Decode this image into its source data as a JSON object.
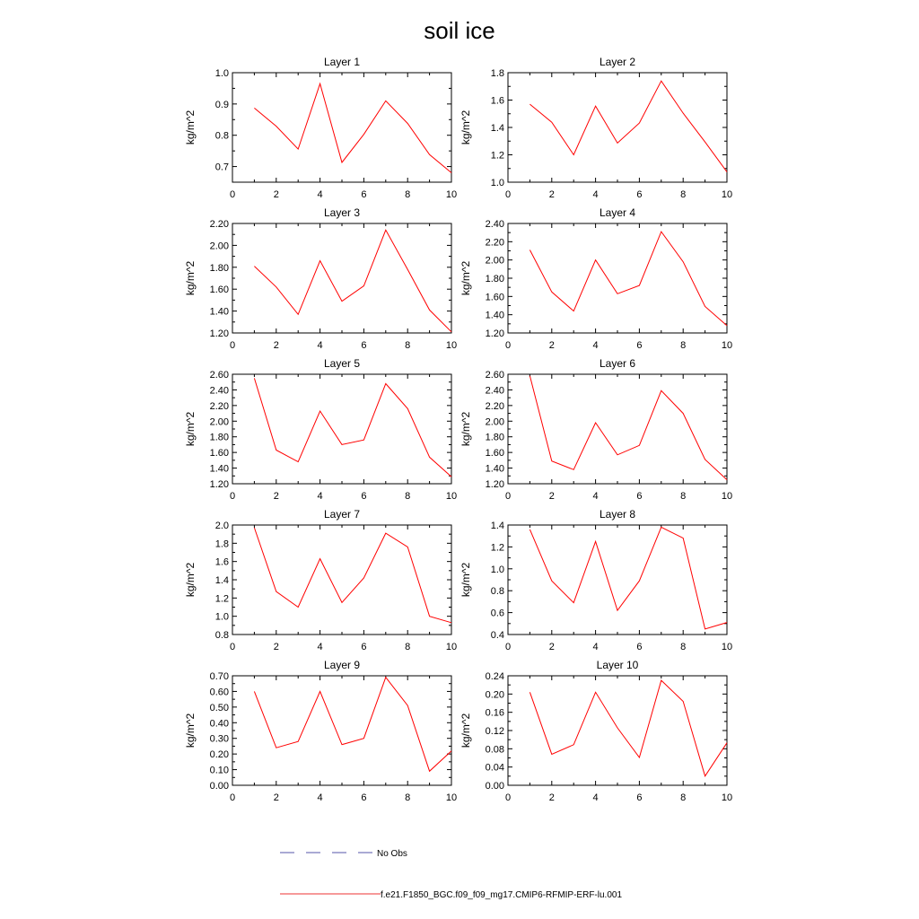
{
  "figure": {
    "title": "soil ice"
  },
  "chart_data": [
    {
      "type": "line",
      "title": "Layer 1",
      "ylabel": "kg/m^2",
      "xlim": [
        0,
        10
      ],
      "ylim": [
        0.65,
        1.0
      ],
      "xticks": [
        "0",
        "2",
        "4",
        "6",
        "8",
        "10"
      ],
      "yticks": [
        0.7,
        0.8,
        0.9,
        1.0
      ],
      "ytick_labels": [
        "0.7",
        "0.8",
        "0.9",
        "1.0"
      ],
      "x": [
        1,
        2,
        3,
        4,
        5,
        6,
        7,
        8,
        9,
        10
      ],
      "series": [
        {
          "name": "f.e21.F1850_BGC.f09_f09_mg17.CMIP6-RFMIP-ERF-lu.001",
          "values": [
            0.887,
            0.829,
            0.756,
            0.965,
            0.713,
            0.803,
            0.91,
            0.838,
            0.738,
            0.68
          ]
        }
      ]
    },
    {
      "type": "line",
      "title": "Layer 2",
      "ylabel": "kg/m^2",
      "xlim": [
        0,
        10
      ],
      "ylim": [
        1.0,
        1.8
      ],
      "xticks": [
        "0",
        "2",
        "4",
        "6",
        "8",
        "10"
      ],
      "yticks": [
        1.0,
        1.2,
        1.4,
        1.6,
        1.8
      ],
      "ytick_labels": [
        "1.0",
        "1.2",
        "1.4",
        "1.6",
        "1.8"
      ],
      "x": [
        1,
        2,
        3,
        4,
        5,
        6,
        7,
        8,
        9,
        10
      ],
      "series": [
        {
          "name": "f.e21.F1850_BGC.f09_f09_mg17.CMIP6-RFMIP-ERF-lu.001",
          "values": [
            1.57,
            1.438,
            1.2,
            1.556,
            1.286,
            1.432,
            1.74,
            1.504,
            1.294,
            1.075
          ]
        }
      ]
    },
    {
      "type": "line",
      "title": "Layer 3",
      "ylabel": "kg/m^2",
      "xlim": [
        0,
        10
      ],
      "ylim": [
        1.2,
        2.2
      ],
      "xticks": [
        "0",
        "2",
        "4",
        "6",
        "8",
        "10"
      ],
      "yticks": [
        1.2,
        1.4,
        1.6,
        1.8,
        2.0,
        2.2
      ],
      "ytick_labels": [
        "1.20",
        "1.40",
        "1.60",
        "1.80",
        "2.00",
        "2.20"
      ],
      "x": [
        1,
        2,
        3,
        4,
        5,
        6,
        7,
        8,
        9,
        10
      ],
      "series": [
        {
          "name": "f.e21.F1850_BGC.f09_f09_mg17.CMIP6-RFMIP-ERF-lu.001",
          "values": [
            1.81,
            1.62,
            1.37,
            1.86,
            1.49,
            1.63,
            2.14,
            1.78,
            1.41,
            1.21
          ]
        }
      ]
    },
    {
      "type": "line",
      "title": "Layer 4",
      "ylabel": "kg/m^2",
      "xlim": [
        0,
        10
      ],
      "ylim": [
        1.2,
        2.4
      ],
      "xticks": [
        "0",
        "2",
        "4",
        "6",
        "8",
        "10"
      ],
      "yticks": [
        1.2,
        1.4,
        1.6,
        1.8,
        2.0,
        2.2,
        2.4
      ],
      "ytick_labels": [
        "1.20",
        "1.40",
        "1.60",
        "1.80",
        "2.00",
        "2.20",
        "2.40"
      ],
      "x": [
        1,
        2,
        3,
        4,
        5,
        6,
        7,
        8,
        9,
        10
      ],
      "series": [
        {
          "name": "f.e21.F1850_BGC.f09_f09_mg17.CMIP6-RFMIP-ERF-lu.001",
          "values": [
            2.11,
            1.65,
            1.44,
            2.0,
            1.63,
            1.72,
            2.31,
            1.98,
            1.49,
            1.28
          ]
        }
      ]
    },
    {
      "type": "line",
      "title": "Layer 5",
      "ylabel": "kg/m^2",
      "xlim": [
        0,
        10
      ],
      "ylim": [
        1.2,
        2.6
      ],
      "xticks": [
        "0",
        "2",
        "4",
        "6",
        "8",
        "10"
      ],
      "yticks": [
        1.2,
        1.4,
        1.6,
        1.8,
        2.0,
        2.2,
        2.4,
        2.6
      ],
      "ytick_labels": [
        "1.20",
        "1.40",
        "1.60",
        "1.80",
        "2.00",
        "2.20",
        "2.40",
        "2.60"
      ],
      "x": [
        1,
        2,
        3,
        4,
        5,
        6,
        7,
        8,
        9,
        10
      ],
      "series": [
        {
          "name": "f.e21.F1850_BGC.f09_f09_mg17.CMIP6-RFMIP-ERF-lu.001",
          "values": [
            2.55,
            1.63,
            1.48,
            2.13,
            1.7,
            1.76,
            2.48,
            2.16,
            1.54,
            1.29
          ]
        }
      ]
    },
    {
      "type": "line",
      "title": "Layer 6",
      "ylabel": "kg/m^2",
      "xlim": [
        0,
        10
      ],
      "ylim": [
        1.2,
        2.6
      ],
      "xticks": [
        "0",
        "2",
        "4",
        "6",
        "8",
        "10"
      ],
      "yticks": [
        1.2,
        1.4,
        1.6,
        1.8,
        2.0,
        2.2,
        2.4,
        2.6
      ],
      "ytick_labels": [
        "1.20",
        "1.40",
        "1.60",
        "1.80",
        "2.00",
        "2.20",
        "2.40",
        "2.60"
      ],
      "x": [
        1,
        2,
        3,
        4,
        5,
        6,
        7,
        8,
        9,
        10
      ],
      "series": [
        {
          "name": "f.e21.F1850_BGC.f09_f09_mg17.CMIP6-RFMIP-ERF-lu.001",
          "values": [
            2.58,
            1.49,
            1.38,
            1.98,
            1.57,
            1.69,
            2.39,
            2.1,
            1.51,
            1.25
          ]
        }
      ]
    },
    {
      "type": "line",
      "title": "Layer 7",
      "ylabel": "kg/m^2",
      "xlim": [
        0,
        10
      ],
      "ylim": [
        0.8,
        2.0
      ],
      "xticks": [
        "0",
        "2",
        "4",
        "6",
        "8",
        "10"
      ],
      "yticks": [
        0.8,
        1.0,
        1.2,
        1.4,
        1.6,
        1.8,
        2.0
      ],
      "ytick_labels": [
        "0.8",
        "1.0",
        "1.2",
        "1.4",
        "1.6",
        "1.8",
        "2.0"
      ],
      "x": [
        1,
        2,
        3,
        4,
        5,
        6,
        7,
        8,
        9,
        10
      ],
      "series": [
        {
          "name": "f.e21.F1850_BGC.f09_f09_mg17.CMIP6-RFMIP-ERF-lu.001",
          "values": [
            1.97,
            1.27,
            1.1,
            1.63,
            1.15,
            1.42,
            1.91,
            1.76,
            1.0,
            0.93
          ]
        }
      ]
    },
    {
      "type": "line",
      "title": "Layer 8",
      "ylabel": "kg/m^2",
      "xlim": [
        0,
        10
      ],
      "ylim": [
        0.4,
        1.4
      ],
      "xticks": [
        "0",
        "2",
        "4",
        "6",
        "8",
        "10"
      ],
      "yticks": [
        0.4,
        0.6,
        0.8,
        1.0,
        1.2,
        1.4
      ],
      "ytick_labels": [
        "0.4",
        "0.6",
        "0.8",
        "1.0",
        "1.2",
        "1.4"
      ],
      "x": [
        1,
        2,
        3,
        4,
        5,
        6,
        7,
        8,
        9,
        10
      ],
      "series": [
        {
          "name": "f.e21.F1850_BGC.f09_f09_mg17.CMIP6-RFMIP-ERF-lu.001",
          "values": [
            1.36,
            0.89,
            0.69,
            1.25,
            0.62,
            0.89,
            1.38,
            1.28,
            0.45,
            0.51
          ]
        }
      ]
    },
    {
      "type": "line",
      "title": "Layer 9",
      "ylabel": "kg/m^2",
      "xlim": [
        0,
        10
      ],
      "ylim": [
        0.0,
        0.7
      ],
      "xticks": [
        "0",
        "2",
        "4",
        "6",
        "8",
        "10"
      ],
      "yticks": [
        0.0,
        0.1,
        0.2,
        0.3,
        0.4,
        0.5,
        0.6,
        0.7
      ],
      "ytick_labels": [
        "0.00",
        "0.10",
        "0.20",
        "0.30",
        "0.40",
        "0.50",
        "0.60",
        "0.70"
      ],
      "x": [
        1,
        2,
        3,
        4,
        5,
        6,
        7,
        8,
        9,
        10
      ],
      "series": [
        {
          "name": "f.e21.F1850_BGC.f09_f09_mg17.CMIP6-RFMIP-ERF-lu.001",
          "values": [
            0.6,
            0.24,
            0.28,
            0.6,
            0.26,
            0.3,
            0.69,
            0.51,
            0.09,
            0.22
          ]
        }
      ]
    },
    {
      "type": "line",
      "title": "Layer 10",
      "ylabel": "kg/m^2",
      "xlim": [
        0,
        10
      ],
      "ylim": [
        0.0,
        0.24
      ],
      "xticks": [
        "0",
        "2",
        "4",
        "6",
        "8",
        "10"
      ],
      "yticks": [
        0.0,
        0.04,
        0.08,
        0.12,
        0.16,
        0.2,
        0.24
      ],
      "ytick_labels": [
        "0.00",
        "0.04",
        "0.08",
        "0.12",
        "0.16",
        "0.20",
        "0.24"
      ],
      "x": [
        1,
        2,
        3,
        4,
        5,
        6,
        7,
        8,
        9,
        10
      ],
      "series": [
        {
          "name": "f.e21.F1850_BGC.f09_f09_mg17.CMIP6-RFMIP-ERF-lu.001",
          "values": [
            0.204,
            0.068,
            0.089,
            0.204,
            0.126,
            0.061,
            0.23,
            0.184,
            0.02,
            0.093
          ]
        }
      ]
    }
  ],
  "legend": {
    "placement": "bottom",
    "entries": [
      {
        "label": "No Obs",
        "color": "#5555aa",
        "style": "dashed"
      },
      {
        "label": "f.e21.F1850_BGC.f09_f09_mg17.CMIP6-RFMIP-ERF-lu.001",
        "color": "#ee3333",
        "style": "solid"
      }
    ]
  },
  "colors": {
    "series": "#ff0000",
    "axes": "#000000"
  }
}
